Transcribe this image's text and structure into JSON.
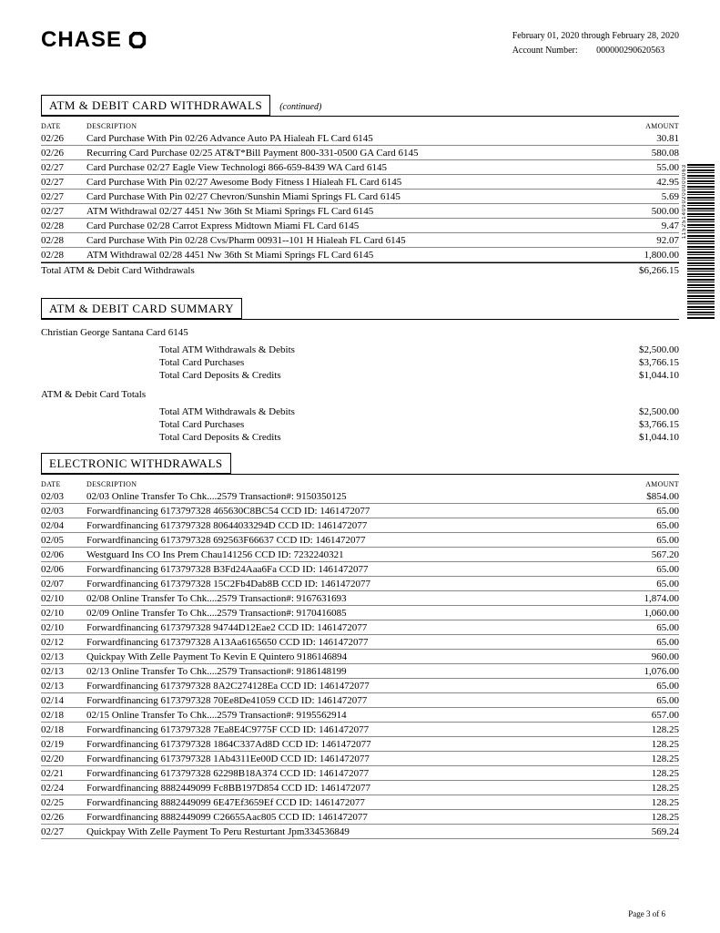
{
  "header": {
    "brand": "CHASE",
    "period": "February 01, 2020 through February 28, 2020",
    "account_label": "Account Number:",
    "account_number": "000000290620563"
  },
  "barcode_text": "1152514090200000063",
  "sections": {
    "atm_debit_withdrawals": {
      "title": "ATM & DEBIT CARD WITHDRAWALS",
      "continued": "(continued)",
      "columns": {
        "date": "DATE",
        "desc": "DESCRIPTION",
        "amount": "AMOUNT"
      },
      "rows": [
        {
          "date": "02/26",
          "desc": "Card Purchase With Pin  02/26 Advance Auto PA Hialeah FL Card 6145",
          "amount": "30.81"
        },
        {
          "date": "02/26",
          "desc": "Recurring Card Purchase 02/25 AT&T*Bill Payment 800-331-0500 GA Card 6145",
          "amount": "580.08"
        },
        {
          "date": "02/27",
          "desc": "Card Purchase           02/27 Eagle View Technologi 866-659-8439 WA Card 6145",
          "amount": "55.00"
        },
        {
          "date": "02/27",
          "desc": "Card Purchase With Pin  02/27 Awesome Body Fitness I Hialeah FL Card 6145",
          "amount": "42.95"
        },
        {
          "date": "02/27",
          "desc": "Card Purchase With Pin  02/27 Chevron/Sunshin Miami Springs FL Card 6145",
          "amount": "5.69"
        },
        {
          "date": "02/27",
          "desc": "ATM Withdrawal       02/27 4451 Nw 36th St Miami Springs FL Card 6145",
          "amount": "500.00"
        },
        {
          "date": "02/28",
          "desc": "Card Purchase           02/28 Carrot Express Midtown Miami FL Card 6145",
          "amount": "9.47"
        },
        {
          "date": "02/28",
          "desc": "Card Purchase With Pin  02/28 Cvs/Pharm 00931--101 H Hialeah FL Card 6145",
          "amount": "92.07"
        },
        {
          "date": "02/28",
          "desc": "ATM Withdrawal       02/28 4451 Nw 36th St Miami Springs FL Card 6145",
          "amount": "1,800.00"
        }
      ],
      "total_label": "Total ATM & Debit Card Withdrawals",
      "total_amount": "$6,266.15"
    },
    "atm_debit_summary": {
      "title": "ATM & DEBIT CARD SUMMARY",
      "cardholder": "Christian George Santana Card 6145",
      "lines1": [
        {
          "label": "Total ATM Withdrawals & Debits",
          "amount": "$2,500.00"
        },
        {
          "label": "Total Card Purchases",
          "amount": "$3,766.15"
        },
        {
          "label": "Total Card Deposits & Credits",
          "amount": "$1,044.10"
        }
      ],
      "totals_label": "ATM & Debit Card Totals",
      "lines2": [
        {
          "label": "Total ATM Withdrawals & Debits",
          "amount": "$2,500.00"
        },
        {
          "label": "Total Card Purchases",
          "amount": "$3,766.15"
        },
        {
          "label": "Total Card Deposits & Credits",
          "amount": "$1,044.10"
        }
      ]
    },
    "electronic_withdrawals": {
      "title": "ELECTRONIC WITHDRAWALS",
      "columns": {
        "date": "DATE",
        "desc": "DESCRIPTION",
        "amount": "AMOUNT"
      },
      "rows": [
        {
          "date": "02/03",
          "desc": "02/03 Online Transfer To Chk....2579 Transaction#: 9150350125",
          "amount": "$854.00"
        },
        {
          "date": "02/03",
          "desc": "Forwardfinancing 6173797328 465630C8BC54   CCD ID: 1461472077",
          "amount": "65.00"
        },
        {
          "date": "02/04",
          "desc": "Forwardfinancing 6173797328 80644033294D   CCD ID: 1461472077",
          "amount": "65.00"
        },
        {
          "date": "02/05",
          "desc": "Forwardfinancing 6173797328 692563F66637   CCD ID: 1461472077",
          "amount": "65.00"
        },
        {
          "date": "02/06",
          "desc": "Westguard Ins CO Ins Prem  Chau141256    CCD ID: 7232240321",
          "amount": "567.20"
        },
        {
          "date": "02/06",
          "desc": "Forwardfinancing 6173797328 B3Fd24Aaa6Fa   CCD ID: 1461472077",
          "amount": "65.00"
        },
        {
          "date": "02/07",
          "desc": "Forwardfinancing 6173797328 15C2Fb4Dab8B   CCD ID: 1461472077",
          "amount": "65.00"
        },
        {
          "date": "02/10",
          "desc": "02/08 Online Transfer To Chk....2579 Transaction#: 9167631693",
          "amount": "1,874.00"
        },
        {
          "date": "02/10",
          "desc": "02/09 Online Transfer To Chk....2579 Transaction#: 9170416085",
          "amount": "1,060.00"
        },
        {
          "date": "02/10",
          "desc": "Forwardfinancing 6173797328 94744D12Eae2   CCD ID: 1461472077",
          "amount": "65.00"
        },
        {
          "date": "02/12",
          "desc": "Forwardfinancing 6173797328 A13Aa6165650   CCD ID: 1461472077",
          "amount": "65.00"
        },
        {
          "date": "02/13",
          "desc": "Quickpay With Zelle Payment To Kevin E Quintero 9186146894",
          "amount": "960.00"
        },
        {
          "date": "02/13",
          "desc": "02/13 Online Transfer To Chk....2579 Transaction#: 9186148199",
          "amount": "1,076.00"
        },
        {
          "date": "02/13",
          "desc": "Forwardfinancing 6173797328 8A2C274128Ea   CCD ID: 1461472077",
          "amount": "65.00"
        },
        {
          "date": "02/14",
          "desc": "Forwardfinancing 6173797328 70Ee8De41059   CCD ID: 1461472077",
          "amount": "65.00"
        },
        {
          "date": "02/18",
          "desc": "02/15 Online Transfer To Chk....2579 Transaction#: 9195562914",
          "amount": "657.00"
        },
        {
          "date": "02/18",
          "desc": "Forwardfinancing 6173797328 7Ea8E4C9775F   CCD ID: 1461472077",
          "amount": "128.25"
        },
        {
          "date": "02/19",
          "desc": "Forwardfinancing 6173797328 1864C337Ad8D   CCD ID: 1461472077",
          "amount": "128.25"
        },
        {
          "date": "02/20",
          "desc": "Forwardfinancing 6173797328 1Ab4311Ee00D   CCD ID: 1461472077",
          "amount": "128.25"
        },
        {
          "date": "02/21",
          "desc": "Forwardfinancing 6173797328 62298B18A374   CCD ID: 1461472077",
          "amount": "128.25"
        },
        {
          "date": "02/24",
          "desc": "Forwardfinancing 8882449099 Fc8BB197D854   CCD ID: 1461472077",
          "amount": "128.25"
        },
        {
          "date": "02/25",
          "desc": "Forwardfinancing 8882449099 6E47Ef3659Ef   CCD ID: 1461472077",
          "amount": "128.25"
        },
        {
          "date": "02/26",
          "desc": "Forwardfinancing 8882449099 C26655Aac805   CCD ID: 1461472077",
          "amount": "128.25"
        },
        {
          "date": "02/27",
          "desc": "Quickpay With Zelle Payment To Peru Resturtant Jpm334536849",
          "amount": "569.24"
        }
      ]
    }
  },
  "footer": {
    "page": "Page 3 of 6"
  }
}
